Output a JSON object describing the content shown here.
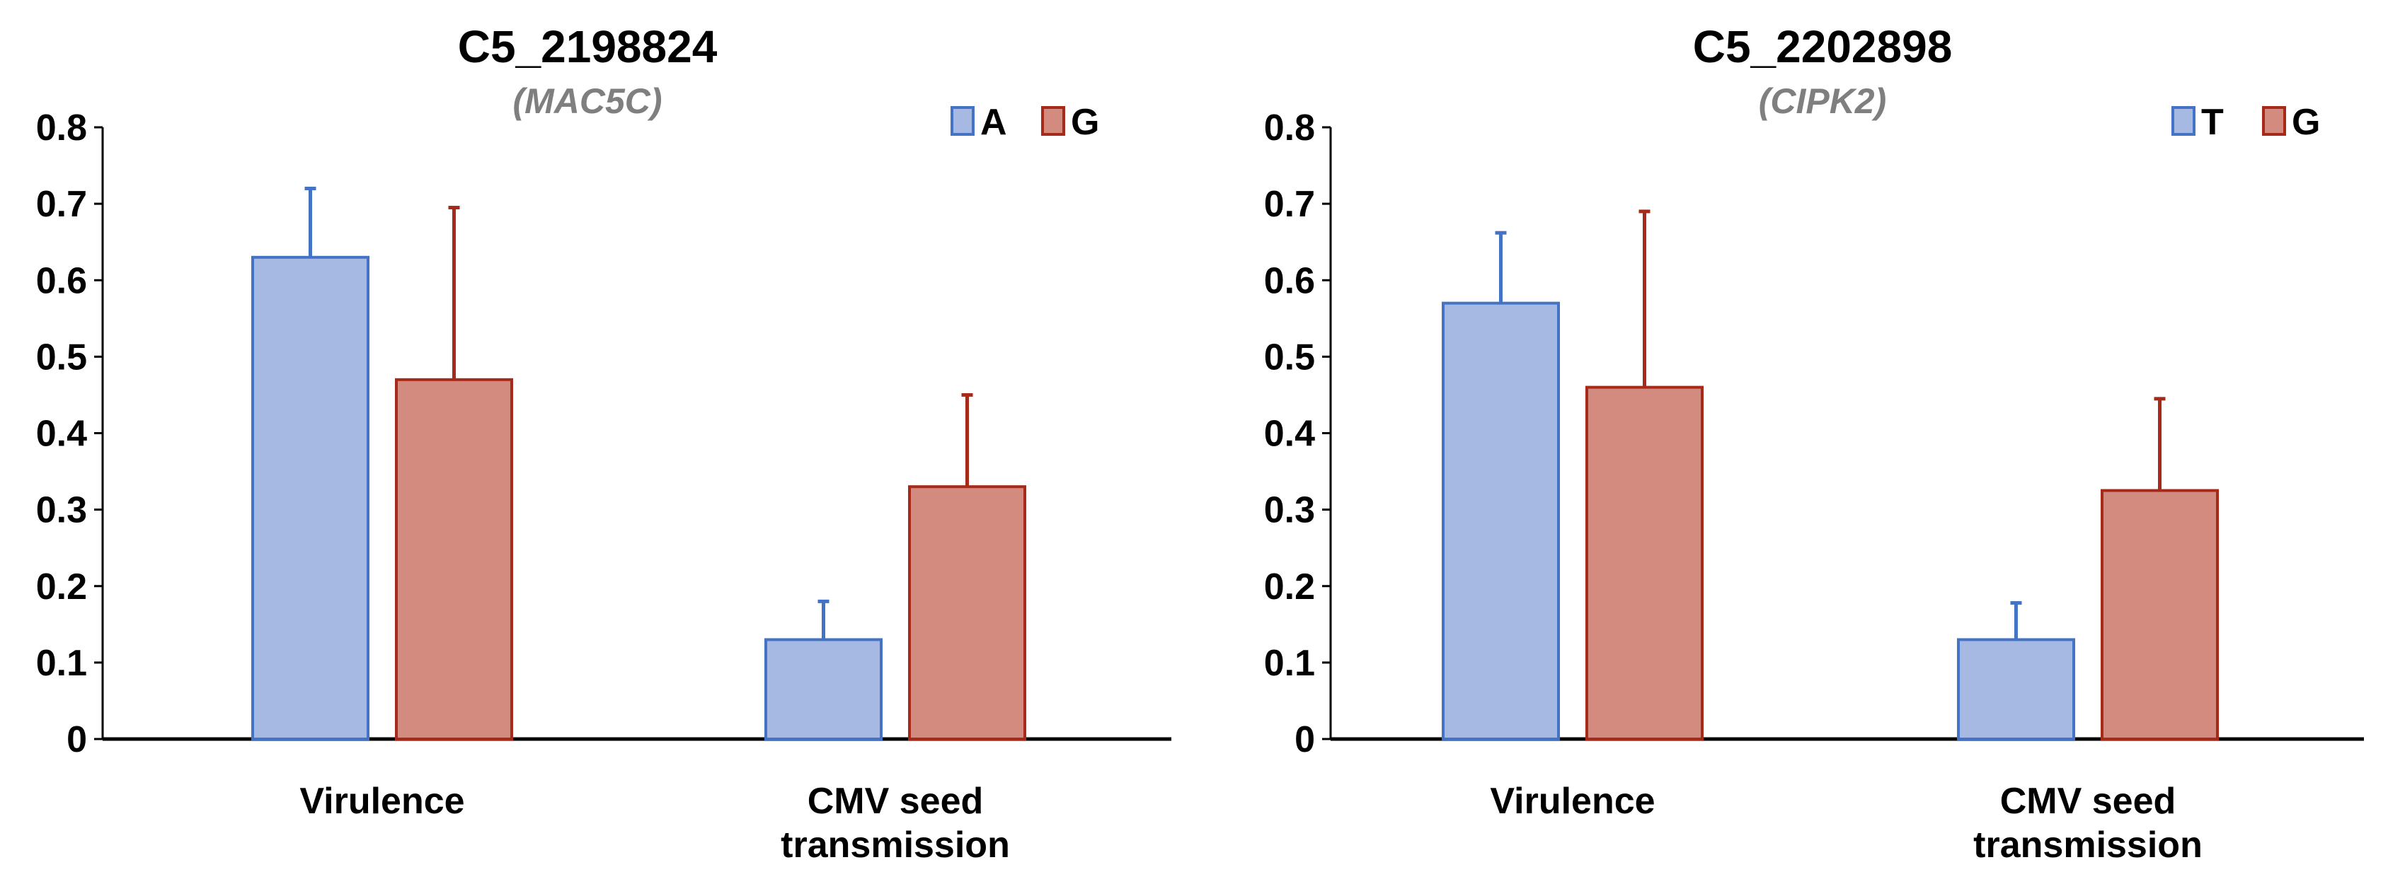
{
  "chart_data": [
    {
      "type": "bar",
      "title": "C5_2198824",
      "subtitle": "(MAC5C)",
      "categories": [
        [
          "Virulence"
        ],
        [
          "CMV seed",
          "transmission"
        ]
      ],
      "ylim": [
        0,
        0.8
      ],
      "yticks": [
        "0",
        "0.1",
        "0.2",
        "0.3",
        "0.4",
        "0.5",
        "0.6",
        "0.7",
        "0.8"
      ],
      "grid": false,
      "legend_position": "top-right",
      "series": [
        {
          "name": "A",
          "color": "#a6b9e3",
          "stroke": "#4472c4",
          "values": [
            0.63,
            0.13
          ],
          "errors": [
            0.09,
            0.05
          ]
        },
        {
          "name": "G",
          "color": "#d38b80",
          "stroke": "#a52a1a",
          "values": [
            0.47,
            0.33
          ],
          "errors": [
            0.225,
            0.12
          ]
        }
      ]
    },
    {
      "type": "bar",
      "title": "C5_2202898",
      "subtitle": "(CIPK2)",
      "categories": [
        [
          "Virulence"
        ],
        [
          "CMV seed",
          "transmission"
        ]
      ],
      "ylim": [
        0,
        0.8
      ],
      "yticks": [
        "0",
        "0.1",
        "0.2",
        "0.3",
        "0.4",
        "0.5",
        "0.6",
        "0.7",
        "0.8"
      ],
      "grid": false,
      "legend_position": "top-right",
      "series": [
        {
          "name": "T",
          "color": "#a6b9e3",
          "stroke": "#4472c4",
          "values": [
            0.57,
            0.13
          ],
          "errors": [
            0.092,
            0.048
          ]
        },
        {
          "name": "G",
          "color": "#d38b80",
          "stroke": "#a52a1a",
          "values": [
            0.46,
            0.325
          ],
          "errors": [
            0.23,
            0.12
          ]
        }
      ]
    }
  ]
}
